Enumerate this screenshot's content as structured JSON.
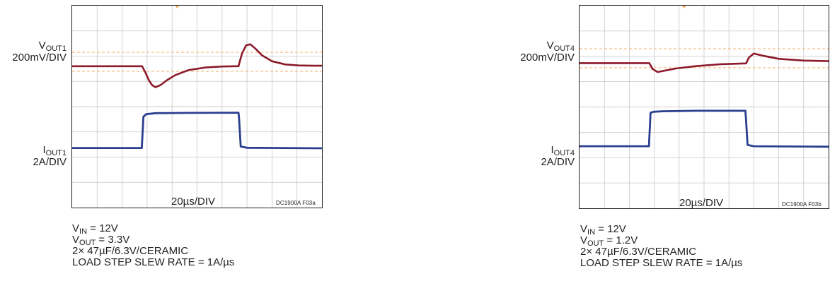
{
  "chart_data": [
    {
      "type": "line",
      "title": "",
      "xlabel": "20µs/DIV",
      "figure_code": "DC1900A F03a",
      "x_divisions": 10,
      "y_divisions": 8,
      "grid": true,
      "colors": {
        "voltage": "#8b1a2b",
        "current": "#2b3f8f",
        "grid": "#c8c8c8",
        "ref": "#f5b26b"
      },
      "channels": [
        {
          "name_main": "V",
          "name_sub": "OUT1",
          "scale": "200mV/DIV"
        },
        {
          "name_main": "I",
          "name_sub": "OUT1",
          "scale": "2A/DIV"
        }
      ],
      "series": [
        {
          "x": [
            0,
            4.2,
            4.4,
            4.6,
            4.8,
            5.0,
            5.3,
            5.7,
            6.2,
            7.0,
            8.0,
            9.0,
            9.8,
            9.99,
            10.05,
            10.2,
            10.45,
            10.7,
            11.0,
            11.4,
            12.0,
            12.8,
            13.6,
            14.5,
            15.0
          ],
          "y": [
            -0.05,
            -0.05,
            -0.3,
            -0.6,
            -0.8,
            -0.88,
            -0.8,
            -0.6,
            -0.4,
            -0.2,
            -0.1,
            -0.06,
            -0.05,
            -0.05,
            0.1,
            0.45,
            0.78,
            0.82,
            0.65,
            0.38,
            0.15,
            0.02,
            -0.02,
            -0.03,
            -0.03
          ]
        },
        {
          "x": [
            0,
            4.18,
            4.28,
            4.45,
            5.0,
            7.0,
            9.99,
            10.02,
            10.12,
            10.5,
            15.0
          ],
          "y": [
            -0.14,
            -0.14,
            1.1,
            1.2,
            1.24,
            1.25,
            1.26,
            1.05,
            -0.08,
            -0.13,
            -0.15
          ]
        }
      ],
      "conditions": [
        {
          "main": "V",
          "sub": "IN",
          "rest": " = 12V"
        },
        {
          "main": "V",
          "sub": "OUT",
          "rest": " = 3.3V"
        },
        {
          "main": "2× 47µF/6.3V/CERAMIC",
          "sub": "",
          "rest": ""
        },
        {
          "main": "LOAD STEP SLEW RATE = 1A/µs",
          "sub": "",
          "rest": ""
        }
      ]
    },
    {
      "type": "line",
      "title": "",
      "xlabel": "20µs/DIV",
      "figure_code": "DC1900A F03b",
      "x_divisions": 10,
      "y_divisions": 8,
      "grid": true,
      "colors": {
        "voltage": "#8b1a2b",
        "current": "#2b3f8f",
        "grid": "#c8c8c8",
        "ref": "#f5b26b"
      },
      "channels": [
        {
          "name_main": "V",
          "name_sub": "OUT4",
          "scale": "200mV/DIV"
        },
        {
          "name_main": "I",
          "name_sub": "OUT4",
          "scale": "2A/DIV"
        }
      ],
      "series": [
        {
          "x": [
            0,
            4.2,
            4.4,
            4.7,
            5.1,
            5.8,
            7.0,
            8.5,
            10.0,
            10.03,
            10.2,
            10.5,
            11.0,
            12.0,
            13.5,
            15.0
          ],
          "y": [
            -0.12,
            -0.12,
            -0.35,
            -0.47,
            -0.42,
            -0.33,
            -0.24,
            -0.16,
            -0.13,
            -0.13,
            0.1,
            0.26,
            0.18,
            0.05,
            -0.02,
            -0.04
          ]
        },
        {
          "x": [
            0,
            4.18,
            4.28,
            4.45,
            5.0,
            7.0,
            9.99,
            10.02,
            10.12,
            10.5,
            15.0
          ],
          "y": [
            -0.1,
            -0.1,
            1.22,
            1.26,
            1.28,
            1.3,
            1.3,
            1.05,
            -0.05,
            -0.1,
            -0.12
          ]
        }
      ],
      "conditions": [
        {
          "main": "V",
          "sub": "IN",
          "rest": " = 12V"
        },
        {
          "main": "V",
          "sub": "OUT",
          "rest": " = 1.2V"
        },
        {
          "main": "2× 47µF/6.3V/CERAMIC",
          "sub": "",
          "rest": ""
        },
        {
          "main": "LOAD STEP SLEW RATE = 1A/µs",
          "sub": "",
          "rest": ""
        }
      ]
    }
  ]
}
